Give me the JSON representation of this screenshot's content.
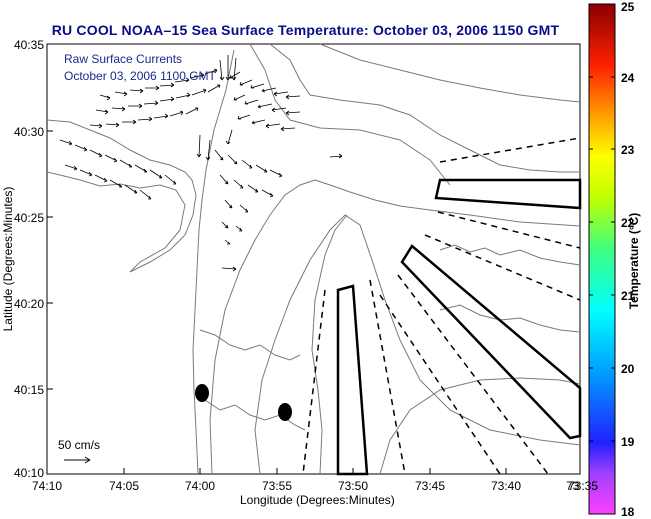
{
  "title": "RU COOL  NOAA–15  Sea Surface Temperature:  October 03, 2006 1150 GMT",
  "overlay": {
    "line1": "Raw Surface Currents",
    "line2": "October 03, 2006 1100 GMT"
  },
  "scale_label": "50 cm/s",
  "axes": {
    "xlabel": "Longitude (Degrees:Minutes)",
    "ylabel": "Latitude (Degrees:Minutes)",
    "xticks": [
      "74:10",
      "74:05",
      "74:00",
      "73:55",
      "73:50",
      "73:45",
      "73:40",
      "73:35",
      "73:3"
    ],
    "yticks": [
      "40:35",
      "40:30",
      "40:25",
      "40:20",
      "40:15",
      "40:10"
    ]
  },
  "colorbar": {
    "label": "Temperature (°C)",
    "ticks": [
      "25",
      "24",
      "23",
      "22",
      "21",
      "20",
      "19",
      "18"
    ]
  },
  "colors": {
    "title": "#0a0a8c",
    "overlay": "#1a2a8c",
    "contour": "#7a7a7a"
  }
}
